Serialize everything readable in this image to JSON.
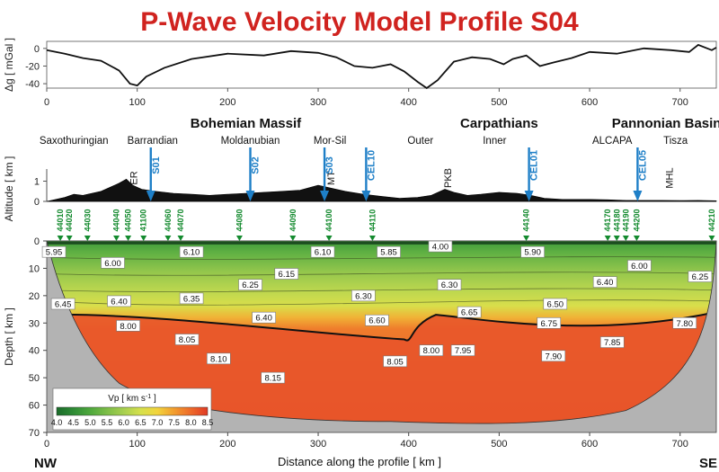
{
  "title": "P-Wave Velocity Model Profile S04",
  "colors": {
    "title": "#d0231f",
    "shot": "#1e7fc7",
    "station": "#138a2e",
    "topography": "#111111",
    "background": "#b3b3b3"
  },
  "corners": {
    "left": "NW",
    "right": "SE"
  },
  "x_axis_label": "Distance along the profile  [ km ]",
  "x_ticks": [
    0,
    100,
    200,
    300,
    400,
    500,
    600,
    700
  ],
  "gravity": {
    "ylabel": "Δg  [ mGal ]",
    "ticks": [
      0,
      -20,
      -40
    ],
    "ylim": [
      -45,
      8
    ],
    "series": [
      [
        0,
        -2
      ],
      [
        20,
        -6
      ],
      [
        40,
        -11
      ],
      [
        60,
        -14
      ],
      [
        80,
        -25
      ],
      [
        92,
        -40
      ],
      [
        100,
        -42
      ],
      [
        110,
        -32
      ],
      [
        130,
        -22
      ],
      [
        160,
        -12
      ],
      [
        200,
        -6
      ],
      [
        240,
        -8
      ],
      [
        270,
        -3
      ],
      [
        300,
        -5
      ],
      [
        320,
        -10
      ],
      [
        340,
        -20
      ],
      [
        360,
        -22
      ],
      [
        380,
        -18
      ],
      [
        395,
        -26
      ],
      [
        410,
        -38
      ],
      [
        420,
        -45
      ],
      [
        432,
        -36
      ],
      [
        450,
        -15
      ],
      [
        470,
        -10
      ],
      [
        490,
        -12
      ],
      [
        505,
        -18
      ],
      [
        515,
        -12
      ],
      [
        530,
        -8
      ],
      [
        545,
        -20
      ],
      [
        560,
        -16
      ],
      [
        580,
        -11
      ],
      [
        600,
        -4
      ],
      [
        630,
        -6
      ],
      [
        660,
        0
      ],
      [
        690,
        -2
      ],
      [
        710,
        -4
      ],
      [
        720,
        4
      ],
      [
        735,
        -2
      ],
      [
        740,
        1
      ]
    ]
  },
  "altitude": {
    "ylabel": "Altitude  [ km ]",
    "ticks": [
      0,
      1
    ],
    "ylim": [
      0,
      1.6
    ],
    "series": [
      [
        0,
        0.0
      ],
      [
        10,
        0.1
      ],
      [
        20,
        0.2
      ],
      [
        30,
        0.35
      ],
      [
        40,
        0.3
      ],
      [
        50,
        0.4
      ],
      [
        60,
        0.5
      ],
      [
        70,
        0.7
      ],
      [
        80,
        0.9
      ],
      [
        88,
        1.1
      ],
      [
        95,
        0.8
      ],
      [
        105,
        0.6
      ],
      [
        120,
        0.5
      ],
      [
        140,
        0.4
      ],
      [
        160,
        0.35
      ],
      [
        180,
        0.3
      ],
      [
        200,
        0.35
      ],
      [
        220,
        0.4
      ],
      [
        240,
        0.45
      ],
      [
        260,
        0.5
      ],
      [
        280,
        0.55
      ],
      [
        300,
        0.8
      ],
      [
        310,
        0.7
      ],
      [
        330,
        0.5
      ],
      [
        350,
        0.35
      ],
      [
        370,
        0.25
      ],
      [
        390,
        0.15
      ],
      [
        410,
        0.2
      ],
      [
        425,
        0.3
      ],
      [
        440,
        0.6
      ],
      [
        450,
        0.45
      ],
      [
        465,
        0.3
      ],
      [
        480,
        0.35
      ],
      [
        500,
        0.45
      ],
      [
        520,
        0.4
      ],
      [
        535,
        0.3
      ],
      [
        550,
        0.15
      ],
      [
        570,
        0.1
      ],
      [
        600,
        0.1
      ],
      [
        620,
        0.08
      ],
      [
        640,
        0.05
      ],
      [
        660,
        0.05
      ],
      [
        680,
        0.05
      ],
      [
        700,
        0.04
      ],
      [
        720,
        0.05
      ],
      [
        740,
        0.03
      ]
    ]
  },
  "regions": [
    {
      "label": "Bohemian Massif",
      "x": 220,
      "level": "major"
    },
    {
      "label": "Carpathians",
      "x": 500,
      "level": "major"
    },
    {
      "label": "Pannonian Basin",
      "x": 685,
      "level": "major"
    },
    {
      "label": "Saxothuringian",
      "x": 30,
      "level": "minor"
    },
    {
      "label": "Barrandian",
      "x": 117,
      "level": "minor"
    },
    {
      "label": "Moldanubian",
      "x": 225,
      "level": "minor"
    },
    {
      "label": "Mor-Sil",
      "x": 313,
      "level": "minor"
    },
    {
      "label": "Outer",
      "x": 413,
      "level": "minor"
    },
    {
      "label": "Inner",
      "x": 495,
      "level": "minor"
    },
    {
      "label": "ALCAPA",
      "x": 625,
      "level": "minor"
    },
    {
      "label": "Tisza",
      "x": 695,
      "level": "minor"
    }
  ],
  "shots": [
    {
      "label": "S01",
      "x": 115
    },
    {
      "label": "S02",
      "x": 225
    },
    {
      "label": "S03",
      "x": 307
    },
    {
      "label": "CEL10",
      "x": 353
    },
    {
      "label": "CEL01",
      "x": 533
    },
    {
      "label": "CEL05",
      "x": 653
    }
  ],
  "geology_labels": [
    {
      "label": "ER",
      "x": 100
    },
    {
      "label": "MT",
      "x": 318
    },
    {
      "label": "PKB",
      "x": 447
    },
    {
      "label": "MHL",
      "x": 692
    }
  ],
  "stations": [
    {
      "label": "44010",
      "x": 15
    },
    {
      "label": "44020",
      "x": 25
    },
    {
      "label": "44030",
      "x": 45
    },
    {
      "label": "44040",
      "x": 77
    },
    {
      "label": "44050",
      "x": 90
    },
    {
      "label": "41100",
      "x": 107
    },
    {
      "label": "44060",
      "x": 134
    },
    {
      "label": "44070",
      "x": 148
    },
    {
      "label": "44080",
      "x": 213
    },
    {
      "label": "44090",
      "x": 272
    },
    {
      "label": "44100",
      "x": 312
    },
    {
      "label": "44110",
      "x": 360
    },
    {
      "label": "44140",
      "x": 530
    },
    {
      "label": "44170",
      "x": 620
    },
    {
      "label": "44180",
      "x": 630
    },
    {
      "label": "44190",
      "x": 640
    },
    {
      "label": "44200",
      "x": 652
    },
    {
      "label": "44210",
      "x": 735
    }
  ],
  "depth": {
    "ylabel": "Depth  [ km ]",
    "ticks": [
      0,
      10,
      20,
      30,
      40,
      50,
      60,
      70
    ],
    "ylim": [
      0,
      70
    ]
  },
  "velocity_labels": [
    {
      "v": "5.95",
      "x": 8,
      "d": 4
    },
    {
      "v": "6.00",
      "x": 73,
      "d": 8
    },
    {
      "v": "6.10",
      "x": 160,
      "d": 4
    },
    {
      "v": "6.10",
      "x": 305,
      "d": 4
    },
    {
      "v": "5.85",
      "x": 378,
      "d": 4
    },
    {
      "v": "4.00",
      "x": 435,
      "d": 2
    },
    {
      "v": "5.90",
      "x": 537,
      "d": 4
    },
    {
      "v": "6.00",
      "x": 655,
      "d": 9
    },
    {
      "v": "6.15",
      "x": 265,
      "d": 12
    },
    {
      "v": "6.25",
      "x": 225,
      "d": 16
    },
    {
      "v": "6.30",
      "x": 445,
      "d": 16
    },
    {
      "v": "6.40",
      "x": 617,
      "d": 15
    },
    {
      "v": "6.25",
      "x": 722,
      "d": 13
    },
    {
      "v": "6.35",
      "x": 160,
      "d": 21
    },
    {
      "v": "6.30",
      "x": 350,
      "d": 20
    },
    {
      "v": "6.45",
      "x": 18,
      "d": 23
    },
    {
      "v": "6.40",
      "x": 80,
      "d": 22
    },
    {
      "v": "6.50",
      "x": 562,
      "d": 23
    },
    {
      "v": "6.40",
      "x": 240,
      "d": 28
    },
    {
      "v": "6.65",
      "x": 467,
      "d": 26
    },
    {
      "v": "6.60",
      "x": 365,
      "d": 29
    },
    {
      "v": "6.75",
      "x": 555,
      "d": 30
    },
    {
      "v": "7.80",
      "x": 705,
      "d": 30
    },
    {
      "v": "8.00",
      "x": 90,
      "d": 31
    },
    {
      "v": "8.05",
      "x": 155,
      "d": 36
    },
    {
      "v": "7.95",
      "x": 460,
      "d": 40
    },
    {
      "v": "8.00",
      "x": 425,
      "d": 40
    },
    {
      "v": "7.85",
      "x": 625,
      "d": 37
    },
    {
      "v": "7.90",
      "x": 560,
      "d": 42
    },
    {
      "v": "8.10",
      "x": 190,
      "d": 43
    },
    {
      "v": "8.05",
      "x": 385,
      "d": 44
    },
    {
      "v": "8.15",
      "x": 250,
      "d": 50
    }
  ],
  "colorbar": {
    "label": "Vp  [ km s",
    "label_sup": "-1",
    "label_end": " ]",
    "ticks": [
      "4.0",
      "4.5",
      "5.0",
      "5.5",
      "6.0",
      "6.5",
      "7.0",
      "7.5",
      "8.0",
      "8.5"
    ],
    "colors": [
      "#1a6b2a",
      "#2e8b35",
      "#4ea83c",
      "#7cbd47",
      "#a7cf4f",
      "#d5e04c",
      "#f2d43c",
      "#f29d2e",
      "#ee6a2a",
      "#e03a24"
    ]
  }
}
